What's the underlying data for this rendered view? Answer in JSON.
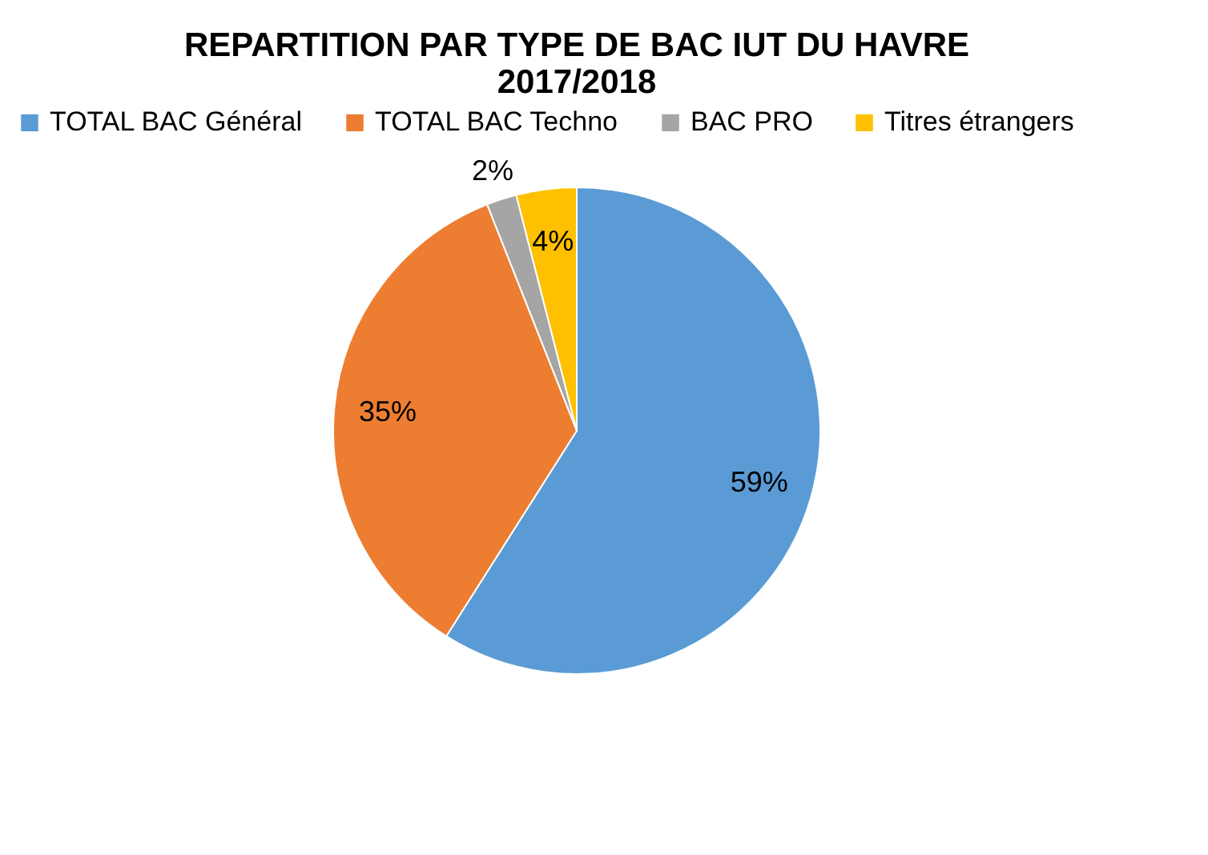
{
  "chart_data": {
    "type": "pie",
    "title": "REPARTITION PAR TYPE DE BAC IUT DU HAVRE\n2017/2018",
    "categories": [
      "TOTAL BAC Général",
      "TOTAL BAC Techno",
      "BAC PRO",
      "Titres étrangers"
    ],
    "values": [
      59,
      35,
      2,
      4
    ],
    "colors": [
      "#5b9bd5",
      "#ed7d31",
      "#a5a5a5",
      "#ffc000"
    ],
    "value_labels": [
      "59%",
      "35%",
      "2%",
      "4%"
    ],
    "legend": "top"
  }
}
